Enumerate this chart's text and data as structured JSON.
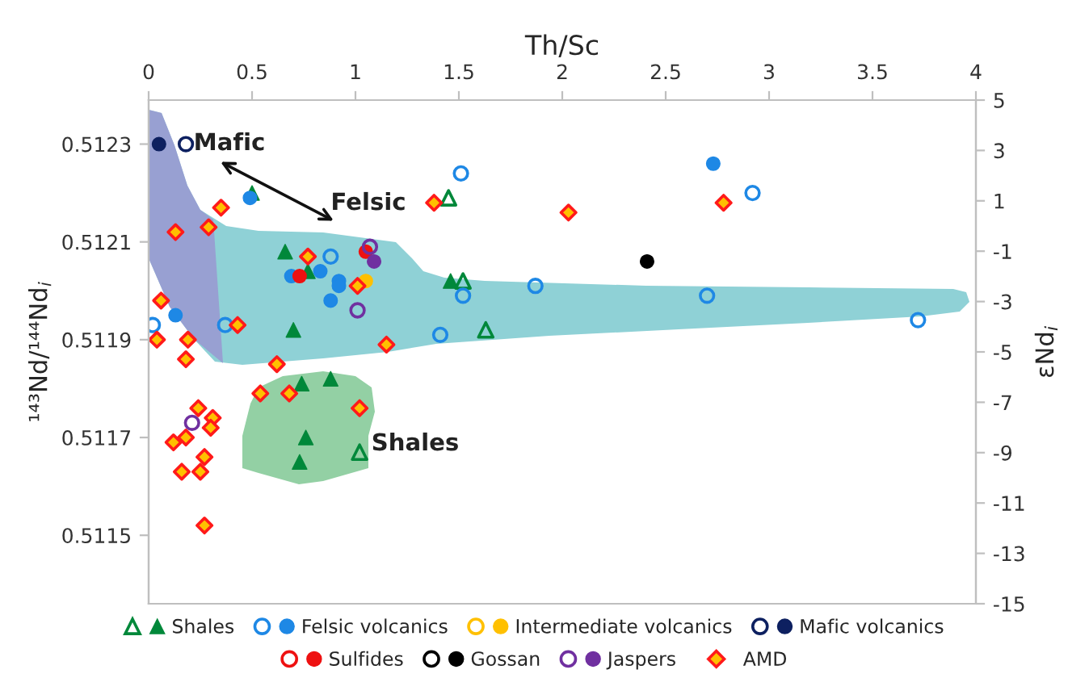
{
  "chart_data": {
    "type": "scatter",
    "xlabel": "Th/Sc",
    "ylabel": "¹⁴³Nd/¹⁴⁴Nd$_{i}$",
    "y2label": "εNd$_{i}$",
    "xlim": [
      0,
      4
    ],
    "xticks": [
      0,
      0.5,
      1,
      1.5,
      2,
      2.5,
      3,
      3.5,
      4
    ],
    "ylim": [
      0.51136,
      0.51239
    ],
    "yticks": [
      0.5115,
      0.5117,
      0.5119,
      0.5121,
      0.5123
    ],
    "y2lim": [
      -15,
      5
    ],
    "y2ticks": [
      -15,
      -13,
      -11,
      -9,
      -7,
      -5,
      -3,
      -1,
      1,
      3,
      5
    ],
    "grid": false,
    "legend": "bottom",
    "annotations": [
      "Mafic",
      "Felsic",
      "Shales"
    ],
    "series": [
      {
        "color": "#00883a",
        "marker": "triangle",
        "x": [
          1.45,
          1.52,
          1.63,
          1.02
        ],
        "values": [
          0.51219,
          0.51202,
          0.51192,
          0.51167
        ]
      },
      {
        "name": "Shales",
        "color": "#00883a",
        "marker": "triangle",
        "x": [
          0.5,
          0.66,
          0.77,
          0.7,
          1.46,
          0.74,
          0.88,
          0.76,
          0.73
        ],
        "values": [
          0.5122,
          0.51208,
          0.51204,
          0.51192,
          0.51202,
          0.51181,
          0.51182,
          0.5117,
          0.51165
        ]
      },
      {
        "color": "#1e88e5",
        "marker": "circle",
        "x": [
          0.02,
          0.37,
          0.88,
          1.41,
          1.51,
          2.92,
          1.52,
          1.87,
          2.7,
          3.72
        ],
        "values": [
          0.51193,
          0.51193,
          0.51207,
          0.51191,
          0.51224,
          0.5122,
          0.51199,
          0.51201,
          0.51199,
          0.51194
        ]
      },
      {
        "name": "Felsic volcanics",
        "color": "#1e88e5",
        "marker": "circle",
        "x": [
          0.49,
          0.13,
          0.69,
          0.83,
          0.92,
          0.92,
          0.88,
          2.73
        ],
        "values": [
          0.51219,
          0.51195,
          0.51203,
          0.51204,
          0.51202,
          0.51201,
          0.51198,
          0.51226
        ]
      },
      {
        "color": "#ffc000",
        "marker": "circle"
      },
      {
        "name": "Intermediate volcanics",
        "color": "#ffc000",
        "marker": "circle",
        "x": [
          1.05
        ],
        "values": [
          0.51202
        ]
      },
      {
        "color": "#0d2060",
        "marker": "circle",
        "x": [
          0.18
        ],
        "values": [
          0.5123
        ]
      },
      {
        "name": "Mafic volcanics",
        "color": "#0d2060",
        "marker": "circle",
        "x": [
          0.05
        ],
        "values": [
          0.5123
        ]
      },
      {
        "color": "#ee1111",
        "marker": "circle"
      },
      {
        "name": "Sulfides",
        "color": "#ee1111",
        "marker": "circle",
        "x": [
          0.73,
          1.05
        ],
        "values": [
          0.51203,
          0.51208
        ]
      },
      {
        "color": "#000000",
        "marker": "circle"
      },
      {
        "name": "Gossan",
        "color": "#000000",
        "marker": "circle",
        "x": [
          2.41
        ],
        "values": [
          0.51206
        ]
      },
      {
        "color": "#7030a0",
        "marker": "circle",
        "x": [
          1.07,
          1.01,
          0.21
        ],
        "values": [
          0.51209,
          0.51196,
          0.51173
        ]
      },
      {
        "name": "Jaspers",
        "color": "#7030a0",
        "marker": "circle",
        "x": [
          1.09
        ],
        "values": [
          0.51206
        ]
      },
      {
        "name": "AMD",
        "color": "#ffc000",
        "marker": "diamond",
        "x": [
          0.35,
          0.29,
          0.13,
          1.38,
          2.03,
          2.78,
          0.77,
          1.01,
          0.06,
          0.43,
          0.04,
          0.19,
          0.18,
          0.62,
          1.15,
          0.54,
          0.68,
          1.02,
          0.24,
          0.31,
          0.3,
          0.18,
          0.12,
          0.27,
          0.16,
          0.25,
          0.27
        ],
        "values": [
          0.51217,
          0.51213,
          0.51212,
          0.51218,
          0.51216,
          0.51218,
          0.51207,
          0.51201,
          0.51198,
          0.51193,
          0.5119,
          0.5119,
          0.51186,
          0.51185,
          0.51189,
          0.51179,
          0.51179,
          0.51176,
          0.51176,
          0.51174,
          0.51172,
          0.5117,
          0.51169,
          0.51166,
          0.51163,
          0.51163,
          0.51152
        ]
      }
    ]
  }
}
